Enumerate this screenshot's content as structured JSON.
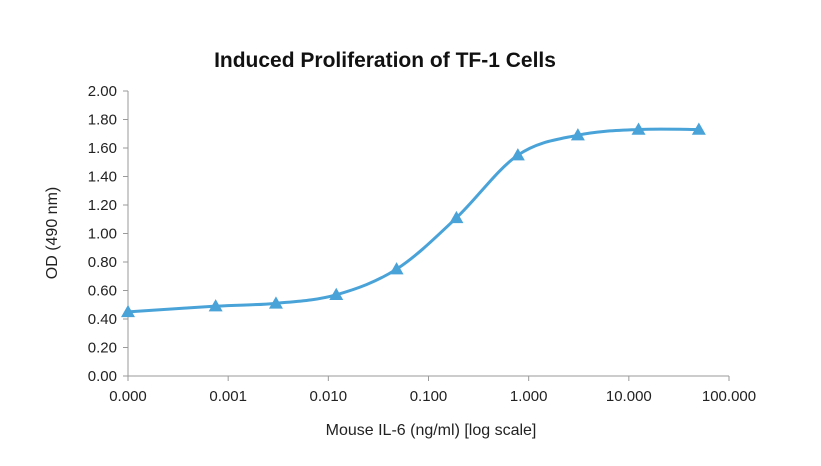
{
  "chart_data": {
    "type": "line",
    "title": "Induced Proliferation of TF-1 Cells",
    "xlabel": "Mouse IL-6 (ng/ml) [log scale]",
    "ylabel": "OD (490 nm)",
    "x_scale": "log",
    "x_tick_labels": [
      "0.000",
      "0.001",
      "0.010",
      "0.100",
      "1.000",
      "10.000",
      "100.000"
    ],
    "y_tick_labels": [
      "0.00",
      "0.20",
      "0.40",
      "0.60",
      "0.80",
      "1.00",
      "1.20",
      "1.40",
      "1.60",
      "1.80",
      "2.00"
    ],
    "xlim": [
      0.0001,
      100
    ],
    "ylim": [
      0,
      2
    ],
    "grid": false,
    "legend": "none",
    "marker": "triangle",
    "color": "#4aa3d8",
    "series": [
      {
        "x": [
          0.0001,
          0.00075,
          0.003,
          0.012,
          0.048,
          0.19,
          0.78,
          3.1,
          12.5,
          50
        ],
        "y": [
          0.45,
          0.49,
          0.51,
          0.57,
          0.75,
          1.11,
          1.55,
          1.69,
          1.73,
          1.73
        ]
      }
    ]
  }
}
